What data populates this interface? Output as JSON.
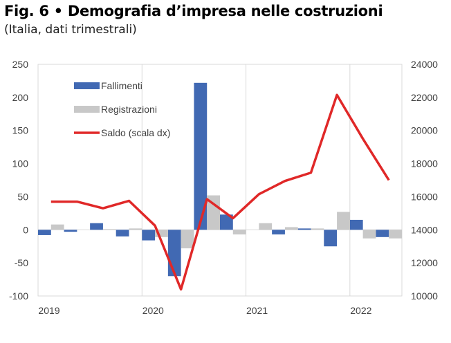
{
  "title": "Fig. 6 • Demografia d’impresa nelle costruzioni",
  "subtitle": "(Italia, dati trimestrali)",
  "chart_data": {
    "type": "bar",
    "x_labels": [
      "2019",
      "2020",
      "2021",
      "2022"
    ],
    "categories": [
      "2019 Q1",
      "2019 Q2",
      "2019 Q3",
      "2019 Q4",
      "2020 Q1",
      "2020 Q2",
      "2020 Q3",
      "2020 Q4",
      "2021 Q1",
      "2021 Q2",
      "2021 Q3",
      "2021 Q4",
      "2022 Q1",
      "2022 Q2"
    ],
    "series": [
      {
        "name": "Fallimenti",
        "type": "bar",
        "axis": "left",
        "color": "#4169b3",
        "values": [
          -8,
          -3,
          10,
          -10,
          -16,
          -70,
          222,
          23,
          0,
          -7,
          2,
          -25,
          15,
          -11
        ]
      },
      {
        "name": "Registrazioni",
        "type": "bar",
        "axis": "left",
        "color": "#c8c8c8",
        "values": [
          8,
          0,
          1,
          2,
          -11,
          -28,
          52,
          -7,
          10,
          4,
          2,
          27,
          -13,
          -13
        ]
      },
      {
        "name": "Saldo (scala dx)",
        "type": "line",
        "axis": "right",
        "color": "#e02828",
        "values": [
          15700,
          15700,
          15300,
          15750,
          14250,
          10400,
          15850,
          14700,
          16150,
          16950,
          17450,
          22150,
          19500,
          17000
        ]
      }
    ],
    "ylim": [
      -100,
      250
    ],
    "yticks": [
      "250",
      "200",
      "150",
      "100",
      "50",
      "0",
      "-50",
      "-100"
    ],
    "y2lim": [
      10000,
      24000
    ],
    "y2ticks": [
      "24000",
      "22000",
      "20000",
      "18000",
      "16000",
      "14000",
      "12000",
      "10000"
    ],
    "legend_position": "top-left",
    "grid": "vertical-year-lines"
  }
}
